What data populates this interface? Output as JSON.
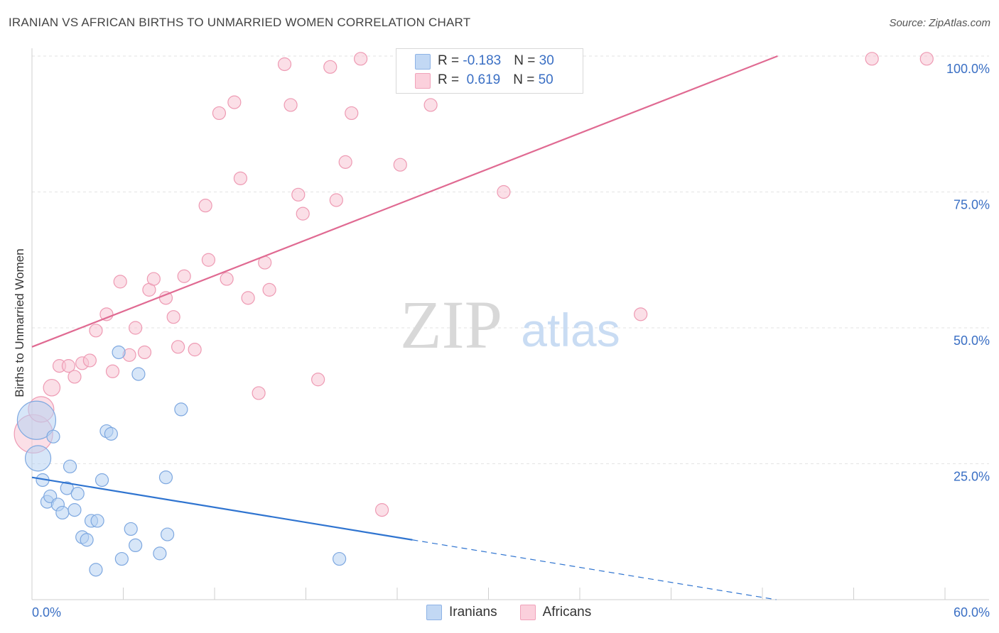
{
  "title": "IRANIAN VS AFRICAN BIRTHS TO UNMARRIED WOMEN CORRELATION CHART",
  "source": "Source: ZipAtlas.com",
  "watermark": {
    "zip": "ZIP",
    "atlas": "atlas"
  },
  "legend": {
    "rows": [
      {
        "r_label": "R = ",
        "r_value": "-0.183",
        "n_label": "N = ",
        "n_value": "30",
        "color": "#a8c8f0"
      },
      {
        "r_label": "R = ",
        "r_value": " 0.619",
        "n_label": "N = ",
        "n_value": "50",
        "color": "#f6b3c6"
      }
    ]
  },
  "colors": {
    "iranians": "#a8c8f0",
    "iranians_line": "#2f74d0",
    "africans": "#f6b3c6",
    "africans_line": "#e06a92",
    "tick_text": "#3a6fc4"
  },
  "chart_data": {
    "type": "scatter",
    "title": "IRANIAN VS AFRICAN BIRTHS TO UNMARRIED WOMEN CORRELATION CHART",
    "xlabel": "",
    "ylabel": "Births to Unmarried Women",
    "xlim": [
      0,
      60
    ],
    "ylim": [
      0,
      102
    ],
    "x_tick_labels": [
      "0.0%",
      "60.0%"
    ],
    "y_ticks": [
      25,
      50,
      75,
      100
    ],
    "y_tick_labels": [
      "25.0%",
      "50.0%",
      "75.0%",
      "100.0%"
    ],
    "grid": true,
    "legend_position": "bottom-center",
    "series": [
      {
        "name": "Iranians",
        "points": [
          [
            0.3,
            33.0
          ],
          [
            0.4,
            26.0
          ],
          [
            0.7,
            22.0
          ],
          [
            1.0,
            18.0
          ],
          [
            1.2,
            19.0
          ],
          [
            1.4,
            30.0
          ],
          [
            1.7,
            17.5
          ],
          [
            2.0,
            16.0
          ],
          [
            2.3,
            20.5
          ],
          [
            2.5,
            24.5
          ],
          [
            2.8,
            16.5
          ],
          [
            3.0,
            19.5
          ],
          [
            3.3,
            11.5
          ],
          [
            3.6,
            11.0
          ],
          [
            3.9,
            14.5
          ],
          [
            4.2,
            5.5
          ],
          [
            4.3,
            14.5
          ],
          [
            4.6,
            22.0
          ],
          [
            4.9,
            31.0
          ],
          [
            5.2,
            30.5
          ],
          [
            5.7,
            45.5
          ],
          [
            5.9,
            7.5
          ],
          [
            6.5,
            13.0
          ],
          [
            6.8,
            10.0
          ],
          [
            7.0,
            41.5
          ],
          [
            8.4,
            8.5
          ],
          [
            8.8,
            22.5
          ],
          [
            8.9,
            12.0
          ],
          [
            9.8,
            35.0
          ],
          [
            20.2,
            7.5
          ]
        ],
        "sizes": [
          3,
          2,
          1,
          1,
          1,
          1,
          1,
          1,
          1,
          1,
          1,
          1,
          1,
          1,
          1,
          1,
          1,
          1,
          1,
          1,
          1,
          1,
          1,
          1,
          1,
          1,
          1,
          1,
          1,
          1
        ],
        "trend": {
          "x": [
            0,
            25
          ],
          "y": [
            22.5,
            11.0
          ],
          "dashed_to": [
            60,
            -5.0
          ]
        }
      },
      {
        "name": "Africans",
        "points": [
          [
            0.1,
            30.5
          ],
          [
            0.6,
            35.0
          ],
          [
            1.3,
            39.0
          ],
          [
            1.8,
            43.0
          ],
          [
            2.4,
            43.0
          ],
          [
            2.8,
            41.0
          ],
          [
            3.3,
            43.5
          ],
          [
            3.8,
            44.0
          ],
          [
            4.2,
            49.5
          ],
          [
            4.9,
            52.5
          ],
          [
            5.3,
            42.0
          ],
          [
            5.8,
            58.5
          ],
          [
            6.4,
            45.0
          ],
          [
            6.8,
            50.0
          ],
          [
            7.4,
            45.5
          ],
          [
            7.7,
            57.0
          ],
          [
            8.0,
            59.0
          ],
          [
            8.8,
            55.5
          ],
          [
            9.3,
            52.0
          ],
          [
            9.6,
            46.5
          ],
          [
            10.0,
            59.5
          ],
          [
            10.7,
            46.0
          ],
          [
            11.4,
            72.5
          ],
          [
            11.6,
            62.5
          ],
          [
            12.3,
            89.5
          ],
          [
            12.8,
            59.0
          ],
          [
            13.3,
            91.5
          ],
          [
            13.7,
            77.5
          ],
          [
            14.2,
            55.5
          ],
          [
            14.9,
            38.0
          ],
          [
            15.3,
            62.0
          ],
          [
            15.6,
            57.0
          ],
          [
            16.6,
            98.5
          ],
          [
            17.0,
            91.0
          ],
          [
            17.5,
            74.5
          ],
          [
            17.8,
            71.0
          ],
          [
            18.8,
            40.5
          ],
          [
            19.6,
            98.0
          ],
          [
            20.0,
            73.5
          ],
          [
            20.6,
            80.5
          ],
          [
            21.0,
            89.5
          ],
          [
            21.6,
            99.5
          ],
          [
            23.0,
            16.5
          ],
          [
            24.2,
            80.0
          ],
          [
            26.2,
            91.0
          ],
          [
            31.0,
            75.0
          ],
          [
            35.3,
            99.5
          ],
          [
            40.0,
            52.5
          ],
          [
            55.2,
            99.5
          ],
          [
            58.8,
            99.5
          ]
        ],
        "sizes": [
          3,
          2,
          1.3,
          1,
          1,
          1,
          1,
          1,
          1,
          1,
          1,
          1,
          1,
          1,
          1,
          1,
          1,
          1,
          1,
          1,
          1,
          1,
          1,
          1,
          1,
          1,
          1,
          1,
          1,
          1,
          1,
          1,
          1,
          1,
          1,
          1,
          1,
          1,
          1,
          1,
          1,
          1,
          1,
          1,
          1,
          1,
          1,
          1,
          1,
          1
        ],
        "trend": {
          "x": [
            0,
            49
          ],
          "y": [
            46.5,
            100.0
          ]
        }
      }
    ]
  }
}
